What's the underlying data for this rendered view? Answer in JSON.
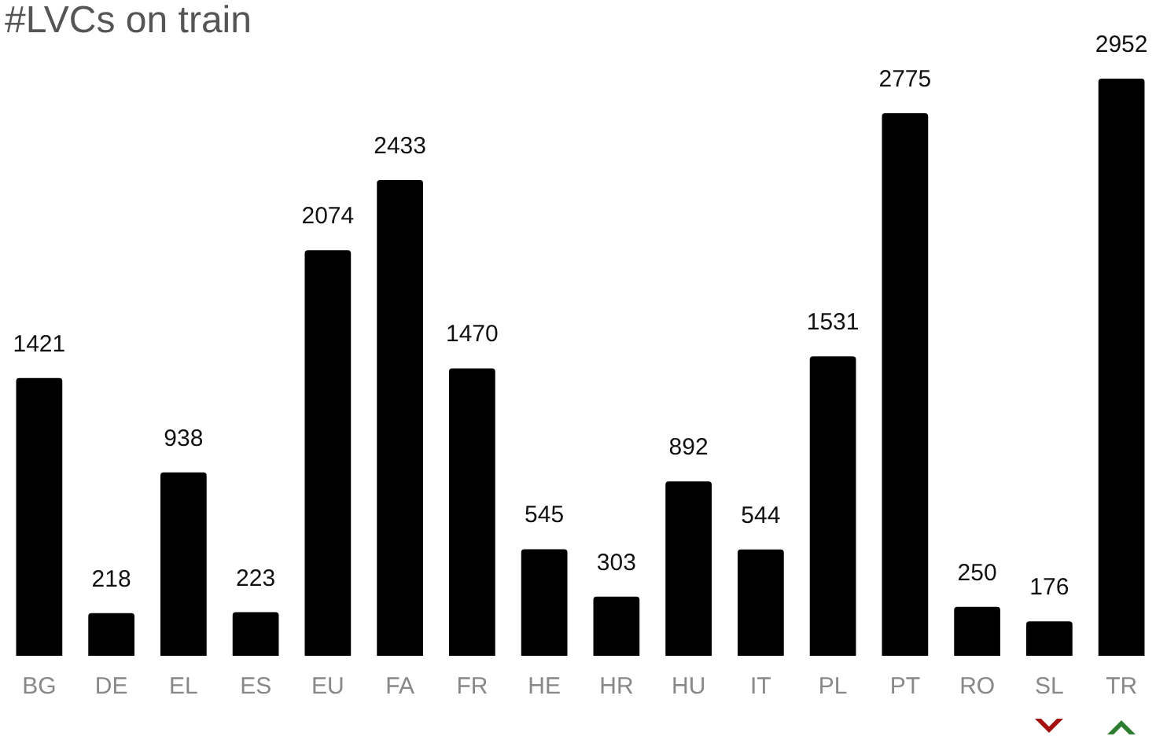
{
  "chart_data": {
    "type": "bar",
    "title": "#LVCs on train",
    "categories": [
      "BG",
      "DE",
      "EL",
      "ES",
      "EU",
      "FA",
      "FR",
      "HE",
      "HR",
      "HU",
      "IT",
      "PL",
      "PT",
      "RO",
      "SL",
      "TR"
    ],
    "values": [
      1421,
      218,
      938,
      223,
      2074,
      2433,
      1470,
      545,
      303,
      892,
      544,
      1531,
      2775,
      250,
      176,
      2952
    ],
    "color": "#000000",
    "data_labels": true
  }
}
